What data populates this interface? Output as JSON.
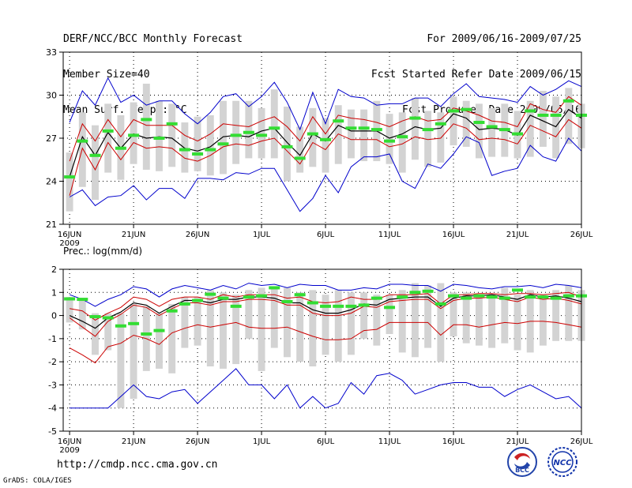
{
  "header": {
    "title": "DERF/NCC/BCC Monthly Forecast",
    "member_size": "Member Size=40",
    "variable": "Mean Surf. Temp.: °C",
    "period": "For 2009/06/16-2009/07/25",
    "start_date": "Fcst Started Refer Date 2009/06/15",
    "produced_date": "Fcst Produced Date 2009/06/16"
  },
  "footer": {
    "url": "http://cmdp.ncc.cma.gov.cn",
    "credit": "GrADS: COLA/IGES"
  },
  "logos": {
    "bcc": "BCC",
    "ncc": "NCC"
  },
  "colors": {
    "envelope": "#0000cc",
    "spread": "#cc0000",
    "mean": "#000000",
    "box": "#d3d3d3",
    "median": "#33dd33",
    "grid": "#000000"
  },
  "chart_data": [
    {
      "type": "line",
      "name": "temperature",
      "title": "",
      "ylabel": "Mean Surf. Temp.: °C",
      "ylim": [
        21,
        33
      ],
      "yticks": [
        21,
        24,
        27,
        30,
        33
      ],
      "xlim": [
        -0.5,
        40
      ],
      "xticks": [
        {
          "x": 0,
          "label": "16JUN",
          "sub": "2009"
        },
        {
          "x": 5,
          "label": "21JUN",
          "sub": ""
        },
        {
          "x": 10,
          "label": "26JUN",
          "sub": ""
        },
        {
          "x": 15,
          "label": "1JUL",
          "sub": ""
        },
        {
          "x": 20,
          "label": "6JUL",
          "sub": ""
        },
        {
          "x": 25,
          "label": "11JUL",
          "sub": ""
        },
        {
          "x": 30,
          "label": "16JUL",
          "sub": ""
        },
        {
          "x": 35,
          "label": "21JUL",
          "sub": ""
        },
        {
          "x": 40,
          "label": "26JUL",
          "sub": ""
        }
      ],
      "series": [
        {
          "name": "max",
          "values": [
            28.1,
            30.3,
            29.3,
            31.2,
            29.5,
            30.0,
            29.3,
            29.6,
            29.6,
            28.7,
            28.0,
            28.8,
            29.9,
            30.1,
            29.2,
            29.9,
            30.9,
            29.5,
            27.6,
            30.2,
            28.0,
            30.4,
            29.9,
            29.8,
            29.3,
            29.4,
            29.4,
            29.8,
            29.8,
            29.2,
            30.1,
            30.8,
            29.9,
            29.8,
            29.7,
            29.5,
            30.6,
            30.0,
            30.4,
            31.0,
            30.6
          ]
        },
        {
          "name": "upper",
          "values": [
            25.4,
            28.0,
            26.8,
            28.3,
            27.1,
            28.3,
            27.9,
            27.9,
            27.9,
            27.2,
            26.8,
            27.3,
            28.0,
            27.9,
            27.8,
            28.2,
            28.5,
            27.8,
            26.8,
            28.5,
            27.3,
            28.6,
            28.4,
            28.3,
            28.1,
            27.8,
            28.2,
            28.5,
            28.2,
            28.3,
            29.1,
            28.9,
            28.6,
            28.2,
            28.1,
            27.8,
            29.4,
            29.0,
            28.8,
            29.9,
            29.3
          ]
        },
        {
          "name": "mean",
          "values": [
            24.3,
            27.1,
            25.8,
            27.4,
            26.3,
            27.3,
            27.0,
            27.1,
            27.0,
            26.3,
            26.1,
            26.4,
            27.1,
            27.2,
            27.1,
            27.5,
            27.7,
            26.7,
            25.8,
            27.3,
            26.8,
            27.9,
            27.5,
            27.5,
            27.5,
            27.0,
            27.3,
            27.8,
            27.6,
            27.7,
            28.7,
            28.4,
            27.6,
            27.7,
            27.6,
            27.2,
            28.6,
            28.2,
            27.8,
            29.0,
            28.4
          ]
        },
        {
          "name": "lower",
          "values": [
            23.0,
            26.3,
            24.8,
            26.7,
            25.5,
            26.7,
            26.3,
            26.4,
            26.3,
            25.6,
            25.4,
            25.8,
            26.4,
            26.6,
            26.5,
            26.8,
            27.0,
            26.1,
            25.2,
            26.7,
            26.2,
            27.3,
            26.9,
            26.9,
            26.9,
            26.4,
            26.6,
            27.1,
            26.9,
            27.0,
            28.0,
            27.7,
            26.9,
            27.0,
            26.9,
            26.6,
            27.9,
            27.5,
            27.1,
            28.3,
            27.7
          ]
        },
        {
          "name": "min",
          "values": [
            22.9,
            23.4,
            22.3,
            22.9,
            23.0,
            23.7,
            22.7,
            23.5,
            23.5,
            22.8,
            24.2,
            24.2,
            24.1,
            24.6,
            24.5,
            24.9,
            24.9,
            23.4,
            21.9,
            22.8,
            24.4,
            23.2,
            25.0,
            25.7,
            25.7,
            25.9,
            24.0,
            23.5,
            25.2,
            24.9,
            25.9,
            27.1,
            26.7,
            24.4,
            24.7,
            24.9,
            26.5,
            25.7,
            25.4,
            27.0,
            26.1
          ]
        }
      ],
      "boxes": [
        {
          "low": 21.9,
          "high": 26.0,
          "median": 24.3
        },
        {
          "low": 23.6,
          "high": 28.8,
          "median": 26.8
        },
        {
          "low": 22.7,
          "high": 27.9,
          "median": 25.8
        },
        {
          "low": 24.6,
          "high": 29.4,
          "median": 27.5
        },
        {
          "low": 24.1,
          "high": 28.6,
          "median": 26.3
        },
        {
          "low": 25.2,
          "high": 29.5,
          "median": 27.2
        },
        {
          "low": 24.8,
          "high": 30.8,
          "median": 28.3
        },
        {
          "low": 24.7,
          "high": 29.6,
          "median": 27.0
        },
        {
          "low": 25.0,
          "high": 29.4,
          "median": 28.0
        },
        {
          "low": 24.6,
          "high": 28.1,
          "median": 26.2
        },
        {
          "low": 24.7,
          "high": 28.5,
          "median": 25.9
        },
        {
          "low": 24.4,
          "high": 28.6,
          "median": 26.2
        },
        {
          "low": 24.5,
          "high": 29.6,
          "median": 26.6
        },
        {
          "low": 25.2,
          "high": 29.6,
          "median": 27.2
        },
        {
          "low": 25.6,
          "high": 29.6,
          "median": 27.4
        },
        {
          "low": 25.6,
          "high": 29.1,
          "median": 27.2
        },
        {
          "low": 25.6,
          "high": 30.4,
          "median": 27.7
        },
        {
          "low": 24.0,
          "high": 29.2,
          "median": 26.4
        },
        {
          "low": 24.6,
          "high": 27.8,
          "median": 25.6
        },
        {
          "low": 25.0,
          "high": 29.1,
          "median": 27.3
        },
        {
          "low": 24.6,
          "high": 28.4,
          "median": 26.9
        },
        {
          "low": 25.2,
          "high": 29.3,
          "median": 28.2
        },
        {
          "low": 25.6,
          "high": 29.0,
          "median": 27.7
        },
        {
          "low": 25.4,
          "high": 29.0,
          "median": 27.7
        },
        {
          "low": 25.4,
          "high": 29.6,
          "median": 27.6
        },
        {
          "low": 25.2,
          "high": 28.7,
          "median": 26.8
        },
        {
          "low": 24.6,
          "high": 28.8,
          "median": 27.1
        },
        {
          "low": 25.5,
          "high": 29.8,
          "median": 28.4
        },
        {
          "low": 25.0,
          "high": 28.9,
          "median": 27.6
        },
        {
          "low": 25.3,
          "high": 28.8,
          "median": 28.0
        },
        {
          "low": 26.5,
          "high": 29.9,
          "median": 28.9
        },
        {
          "low": 26.4,
          "high": 29.6,
          "median": 29.0
        },
        {
          "low": 25.6,
          "high": 29.4,
          "median": 28.1
        },
        {
          "low": 25.7,
          "high": 29.1,
          "median": 27.8
        },
        {
          "low": 25.7,
          "high": 29.4,
          "median": 27.6
        },
        {
          "low": 25.6,
          "high": 28.9,
          "median": 27.3
        },
        {
          "low": 25.7,
          "high": 29.6,
          "median": 28.9
        },
        {
          "low": 26.4,
          "high": 30.3,
          "median": 28.6
        },
        {
          "low": 25.6,
          "high": 29.9,
          "median": 28.6
        },
        {
          "low": 26.6,
          "high": 30.5,
          "median": 29.6
        },
        {
          "low": 26.3,
          "high": 29.4,
          "median": 28.6
        }
      ]
    },
    {
      "type": "line",
      "name": "precipitation",
      "title": "Prec.: log(mm/d)",
      "ylabel": "Prec.: log(mm/d)",
      "ylim": [
        -5,
        2
      ],
      "yticks": [
        -5,
        -4,
        -3,
        -2,
        -1,
        0,
        1,
        2
      ],
      "xlim": [
        -0.5,
        40
      ],
      "xticks": [
        {
          "x": 0,
          "label": "16JUN",
          "sub": "2009"
        },
        {
          "x": 5,
          "label": "21JUN",
          "sub": ""
        },
        {
          "x": 10,
          "label": "26JUN",
          "sub": ""
        },
        {
          "x": 15,
          "label": "1JUL",
          "sub": ""
        },
        {
          "x": 20,
          "label": "6JUL",
          "sub": ""
        },
        {
          "x": 25,
          "label": "11JUL",
          "sub": ""
        },
        {
          "x": 30,
          "label": "16JUL",
          "sub": ""
        },
        {
          "x": 35,
          "label": "21JUL",
          "sub": ""
        },
        {
          "x": 40,
          "label": "26JUL",
          "sub": ""
        }
      ],
      "series": [
        {
          "name": "max",
          "values": [
            0.9,
            0.7,
            0.4,
            0.7,
            0.9,
            1.25,
            1.15,
            0.8,
            1.15,
            1.3,
            1.2,
            1.1,
            1.3,
            1.15,
            1.4,
            1.3,
            1.35,
            1.2,
            1.35,
            1.3,
            1.3,
            1.1,
            1.1,
            1.2,
            1.15,
            1.35,
            1.35,
            1.3,
            1.3,
            1.05,
            1.35,
            1.3,
            1.2,
            1.15,
            1.25,
            1.25,
            1.3,
            1.2,
            1.35,
            1.3,
            1.2
          ]
        },
        {
          "name": "upper",
          "values": [
            0.3,
            0.2,
            -0.2,
            0.1,
            0.35,
            0.8,
            0.7,
            0.4,
            0.7,
            0.8,
            0.8,
            0.7,
            0.9,
            0.8,
            0.9,
            0.9,
            0.9,
            0.75,
            0.8,
            0.6,
            0.55,
            0.6,
            0.8,
            0.7,
            0.7,
            0.9,
            0.9,
            0.9,
            0.95,
            0.5,
            0.9,
            0.9,
            0.95,
            0.95,
            0.9,
            0.95,
            0.95,
            0.9,
            0.95,
            1.0,
            0.8
          ]
        },
        {
          "name": "mean",
          "values": [
            0.0,
            -0.25,
            -0.55,
            -0.1,
            0.15,
            0.55,
            0.45,
            0.1,
            0.4,
            0.65,
            0.65,
            0.55,
            0.7,
            0.7,
            0.8,
            0.8,
            0.75,
            0.55,
            0.55,
            0.25,
            0.1,
            0.1,
            0.25,
            0.5,
            0.45,
            0.7,
            0.75,
            0.8,
            0.8,
            0.4,
            0.75,
            0.85,
            0.85,
            0.9,
            0.8,
            0.7,
            0.9,
            0.8,
            0.85,
            0.75,
            0.6
          ]
        },
        {
          "name": "lower",
          "values": [
            -0.1,
            -0.5,
            -0.9,
            -0.25,
            0.05,
            0.45,
            0.35,
            0.0,
            0.3,
            0.55,
            0.55,
            0.45,
            0.6,
            0.6,
            0.7,
            0.7,
            0.65,
            0.45,
            0.45,
            0.1,
            0.0,
            0.0,
            0.1,
            0.4,
            0.35,
            0.6,
            0.65,
            0.7,
            0.7,
            0.3,
            0.65,
            0.75,
            0.75,
            0.8,
            0.7,
            0.6,
            0.8,
            0.7,
            0.75,
            0.65,
            0.5
          ]
        },
        {
          "name": "bottom",
          "values": [
            -1.4,
            -1.7,
            -2.05,
            -1.35,
            -1.2,
            -0.85,
            -1.0,
            -1.25,
            -0.75,
            -0.55,
            -0.4,
            -0.5,
            -0.4,
            -0.3,
            -0.5,
            -0.55,
            -0.55,
            -0.5,
            -0.7,
            -0.9,
            -1.05,
            -1.05,
            -1.0,
            -0.65,
            -0.6,
            -0.3,
            -0.3,
            -0.3,
            -0.3,
            -0.85,
            -0.4,
            -0.4,
            -0.5,
            -0.4,
            -0.3,
            -0.35,
            -0.25,
            -0.25,
            -0.3,
            -0.4,
            -0.5
          ]
        },
        {
          "name": "min",
          "values": [
            -4.0,
            -4.0,
            -4.0,
            -4.0,
            -3.5,
            -3.0,
            -3.5,
            -3.6,
            -3.3,
            -3.2,
            -3.8,
            -3.3,
            -2.8,
            -2.3,
            -3.0,
            -3.0,
            -3.6,
            -3.0,
            -4.0,
            -3.5,
            -4.0,
            -3.8,
            -2.9,
            -3.4,
            -2.6,
            -2.5,
            -2.8,
            -3.4,
            -3.2,
            -3.0,
            -2.9,
            -2.9,
            -3.1,
            -3.1,
            -3.5,
            -3.2,
            -3.0,
            -3.3,
            -3.6,
            -3.5,
            -4.0
          ]
        }
      ],
      "boxes": [
        {
          "low": -0.3,
          "high": 0.8,
          "median": 0.72
        },
        {
          "low": -0.6,
          "high": 0.7,
          "median": 0.7
        },
        {
          "low": -1.7,
          "high": 0.1,
          "median": -0.05
        },
        {
          "low": -1.5,
          "high": 0.1,
          "median": -0.1
        },
        {
          "low": -4.0,
          "high": 0.1,
          "median": -0.45
        },
        {
          "low": -3.6,
          "high": 0.5,
          "median": -0.35
        },
        {
          "low": -2.4,
          "high": 0.4,
          "median": -0.8
        },
        {
          "low": -2.3,
          "high": 0.1,
          "median": -0.65
        },
        {
          "low": -2.5,
          "high": 0.5,
          "median": 0.2
        },
        {
          "low": -1.4,
          "high": 0.8,
          "median": 0.5
        },
        {
          "low": -1.3,
          "high": 0.8,
          "median": 0.65
        },
        {
          "low": -2.2,
          "high": 1.1,
          "median": 0.92
        },
        {
          "low": -2.3,
          "high": 1.0,
          "median": 0.75
        },
        {
          "low": -2.1,
          "high": 0.9,
          "median": 0.4
        },
        {
          "low": -1.0,
          "high": 1.1,
          "median": 0.8
        },
        {
          "low": -2.4,
          "high": 1.2,
          "median": 0.85
        },
        {
          "low": -1.4,
          "high": 1.2,
          "median": 1.2
        },
        {
          "low": -1.8,
          "high": 1.2,
          "median": 0.6
        },
        {
          "low": -2.0,
          "high": 1.0,
          "median": 0.9
        },
        {
          "low": -2.2,
          "high": 1.1,
          "median": 0.55
        },
        {
          "low": -1.7,
          "high": 0.9,
          "median": 0.4
        },
        {
          "low": -2.0,
          "high": 1.1,
          "median": 0.4
        },
        {
          "low": -1.7,
          "high": 1.0,
          "median": 0.4
        },
        {
          "low": -1.0,
          "high": 1.0,
          "median": 0.45
        },
        {
          "low": -1.3,
          "high": 0.9,
          "median": 0.75
        },
        {
          "low": -0.8,
          "high": 0.9,
          "median": 0.35
        },
        {
          "low": -1.6,
          "high": 1.1,
          "median": 0.8
        },
        {
          "low": -1.8,
          "high": 1.4,
          "median": 1.0
        },
        {
          "low": -1.4,
          "high": 1.3,
          "median": 1.05
        },
        {
          "low": -2.0,
          "high": 1.4,
          "median": 0.5
        },
        {
          "low": -0.9,
          "high": 1.0,
          "median": 0.85
        },
        {
          "low": -1.2,
          "high": 1.0,
          "median": 0.75
        },
        {
          "low": -1.3,
          "high": 0.8,
          "median": 0.85
        },
        {
          "low": -1.4,
          "high": 0.9,
          "median": 0.8
        },
        {
          "low": -1.2,
          "high": 1.2,
          "median": 0.75
        },
        {
          "low": -1.5,
          "high": 0.9,
          "median": 1.1
        },
        {
          "low": -1.6,
          "high": 1.1,
          "median": 0.8
        },
        {
          "low": -1.3,
          "high": 0.9,
          "median": 0.8
        },
        {
          "low": -1.1,
          "high": 1.1,
          "median": 0.75
        },
        {
          "low": -1.1,
          "high": 1.3,
          "median": 0.85
        },
        {
          "low": -1.1,
          "high": 1.1,
          "median": 0.85
        }
      ]
    }
  ]
}
